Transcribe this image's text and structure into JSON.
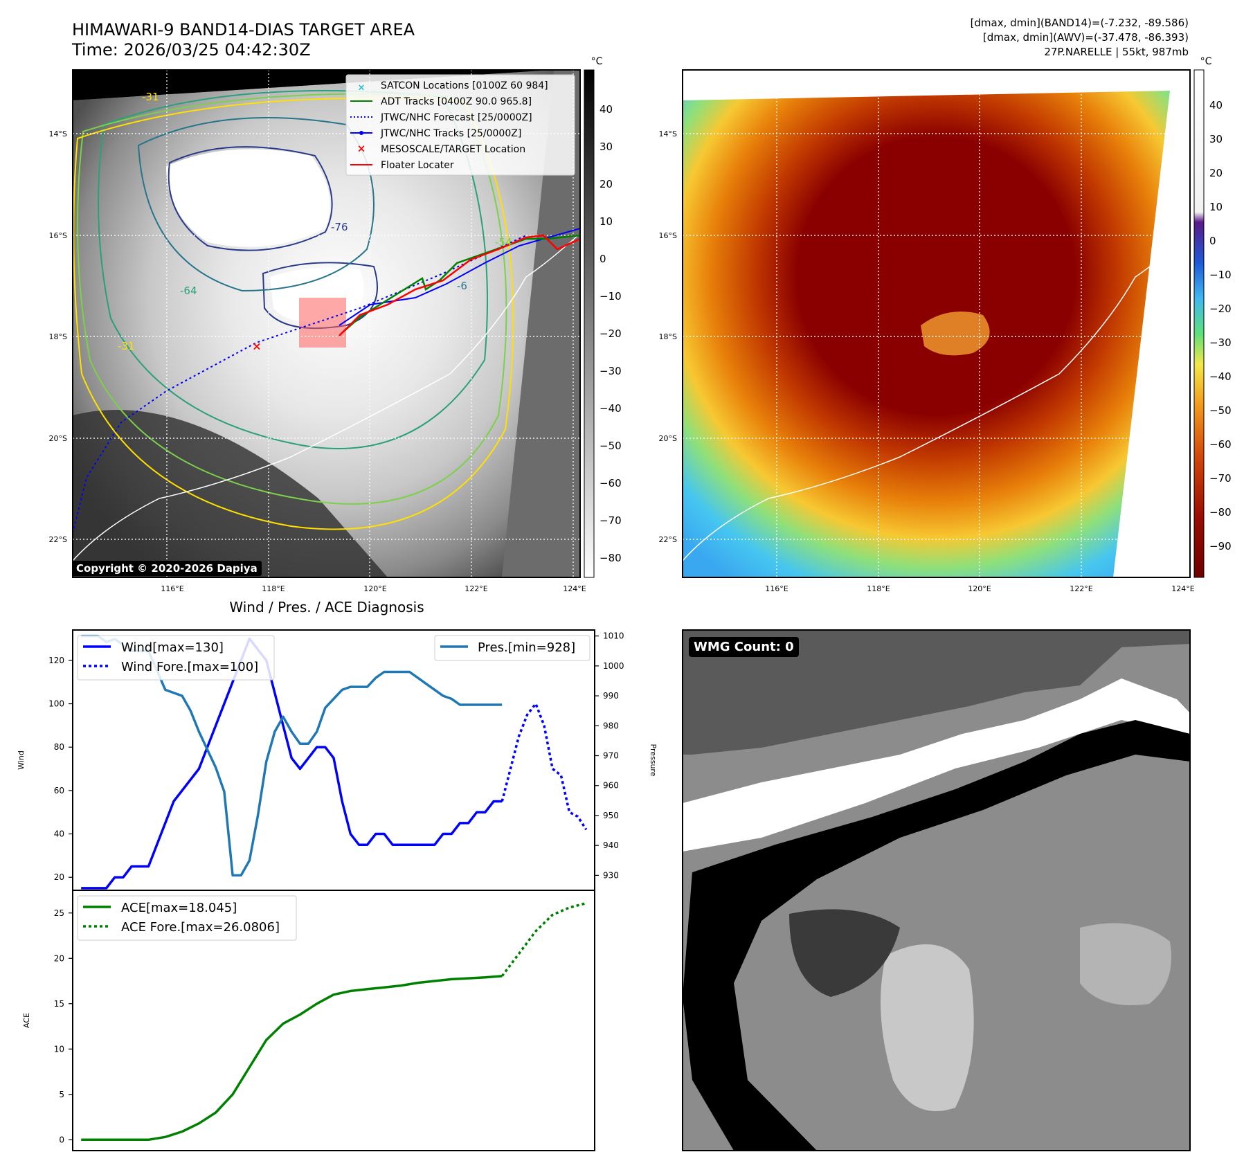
{
  "header": {
    "title": "HIMAWARI-9 BAND14-DIAS TARGET AREA",
    "time": "Time: 2026/03/25 04:42:30Z",
    "stats_line1": "[dmax, dmin](BAND14)=(-7.232, -89.586)",
    "stats_line2": "[dmax, dmin](AWV)=(-37.478, -86.393)",
    "storm_line": "27P.NARELLE | 55kt, 987mb"
  },
  "map_left": {
    "unit": "°C",
    "lat_labels": [
      "14°S",
      "16°S",
      "18°S",
      "20°S",
      "22°S"
    ],
    "lon_labels": [
      "116°E",
      "118°E",
      "120°E",
      "122°E",
      "124°E"
    ],
    "colorbar_ticks": [
      "40",
      "30",
      "20",
      "10",
      "0",
      "−10",
      "−20",
      "−30",
      "−40",
      "−50",
      "−60",
      "−70",
      "−80"
    ],
    "contour_labels": [
      "-31",
      "-76",
      "-64",
      "-54",
      "-6",
      "-31",
      "-31"
    ],
    "legend": [
      {
        "label": "SATCON Locations [0100Z 60 984]",
        "color": "#17becf",
        "style": "x"
      },
      {
        "label": "ADT Tracks [0400Z 90.0 965.8]",
        "color": "#008000",
        "style": "line"
      },
      {
        "label": "JTWC/NHC Forecast [25/0000Z]",
        "color": "#0000ff",
        "style": "dotted"
      },
      {
        "label": "JTWC/NHC Tracks [25/0000Z]",
        "color": "#0000ff",
        "style": "line-dot"
      },
      {
        "label": "MESOSCALE/TARGET Location",
        "color": "#ff0000",
        "style": "x"
      },
      {
        "label": "Floater Locater",
        "color": "#ff0000",
        "style": "line"
      }
    ],
    "copyright": "Copyright © 2020-2026 Dapiya"
  },
  "map_right": {
    "unit": "°C",
    "lat_labels": [
      "14°S",
      "16°S",
      "18°S",
      "20°S",
      "22°S"
    ],
    "lon_labels": [
      "116°E",
      "118°E",
      "120°E",
      "122°E",
      "124°E"
    ],
    "colorbar_ticks": [
      "40",
      "30",
      "20",
      "10",
      "0",
      "−10",
      "−20",
      "−30",
      "−40",
      "−50",
      "−60",
      "−70",
      "−80",
      "−90"
    ]
  },
  "wmg": {
    "label": "WMG Count: 0"
  },
  "colors": {
    "wind": "#0000ff",
    "pressure": "#1f77b4",
    "ace": "#008000",
    "floater": "#ff0000"
  },
  "chart_data": [
    {
      "type": "line",
      "title": "Wind / Pres. / ACE Diagnosis",
      "ylabel": "Wind",
      "y2label": "Pressure",
      "ylim": [
        14,
        134
      ],
      "y2lim": [
        925,
        1012
      ],
      "xlim": [
        -1,
        61
      ],
      "yticks": [
        20,
        40,
        60,
        80,
        100,
        120
      ],
      "y2ticks": [
        930,
        940,
        950,
        960,
        970,
        980,
        990,
        1000,
        1010
      ],
      "legend_left": [
        "Wind[max=130]",
        "Wind Fore.[max=100]"
      ],
      "legend_right": [
        "Pres.[min=928]"
      ],
      "series": [
        {
          "name": "Wind[max=130]",
          "axis": "left",
          "style": "solid",
          "x": [
            0,
            3,
            4,
            5,
            6,
            8,
            11,
            14,
            17,
            20,
            21,
            22,
            23,
            24,
            25,
            26,
            27,
            28,
            29,
            30,
            31,
            32,
            33,
            34,
            35,
            36,
            37,
            38,
            39,
            40,
            42,
            43,
            44,
            45,
            46,
            47,
            48,
            49,
            50
          ],
          "y": [
            15,
            15,
            20,
            20,
            25,
            25,
            55,
            70,
            100,
            130,
            125,
            120,
            105,
            90,
            75,
            70,
            75,
            80,
            80,
            75,
            55,
            40,
            35,
            35,
            40,
            40,
            35,
            35,
            35,
            35,
            35,
            40,
            40,
            45,
            45,
            50,
            50,
            55,
            55
          ]
        },
        {
          "name": "Wind Fore.[max=100]",
          "axis": "left",
          "style": "dotted",
          "x": [
            50,
            51,
            52,
            53,
            54,
            55,
            56,
            57,
            58,
            59,
            60
          ],
          "y": [
            55,
            70,
            85,
            95,
            100,
            90,
            70,
            67,
            50,
            48,
            42
          ]
        },
        {
          "name": "Pres.[min=928]",
          "axis": "right",
          "style": "solid",
          "x": [
            0,
            2,
            3,
            4,
            6,
            8,
            10,
            12,
            13,
            14,
            16,
            17,
            18,
            19,
            20,
            21,
            22,
            23,
            24,
            25,
            26,
            27,
            28,
            29,
            30,
            31,
            32,
            33,
            34,
            35,
            36,
            37,
            38,
            39,
            40,
            41,
            42,
            43,
            44,
            45,
            46,
            47,
            48,
            49,
            50
          ],
          "y": [
            1010,
            1010,
            1008,
            1009,
            1005,
            1005,
            992,
            990,
            985,
            978,
            966,
            958,
            930,
            930,
            935,
            950,
            968,
            978,
            983,
            978,
            974,
            974,
            978,
            986,
            989,
            992,
            993,
            993,
            993,
            996,
            998,
            998,
            998,
            998,
            996,
            994,
            992,
            990,
            989,
            987,
            987,
            987,
            987,
            987,
            987
          ]
        }
      ]
    },
    {
      "type": "line",
      "ylabel": "ACE",
      "ylim": [
        -1.2,
        27.5
      ],
      "xlim": [
        -1,
        61
      ],
      "yticks": [
        0,
        5,
        10,
        15,
        20,
        25
      ],
      "legend": [
        "ACE[max=18.045]",
        "ACE Fore.[max=26.0806]"
      ],
      "series": [
        {
          "name": "ACE[max=18.045]",
          "style": "solid",
          "x": [
            0,
            2,
            4,
            6,
            8,
            10,
            12,
            14,
            16,
            18,
            20,
            22,
            24,
            26,
            28,
            30,
            32,
            34,
            36,
            38,
            40,
            42,
            44,
            46,
            48,
            50
          ],
          "y": [
            0,
            0,
            0,
            0,
            0,
            0.3,
            0.9,
            1.8,
            3.0,
            5.0,
            8.0,
            11.0,
            12.8,
            13.8,
            15.0,
            16.0,
            16.4,
            16.6,
            16.8,
            17.0,
            17.3,
            17.5,
            17.7,
            17.8,
            17.9,
            18.045
          ]
        },
        {
          "name": "ACE Fore.[max=26.0806]",
          "style": "dotted",
          "x": [
            50,
            52,
            54,
            56,
            58,
            60
          ],
          "y": [
            18.045,
            20.5,
            23.0,
            24.8,
            25.6,
            26.08
          ]
        }
      ]
    }
  ]
}
